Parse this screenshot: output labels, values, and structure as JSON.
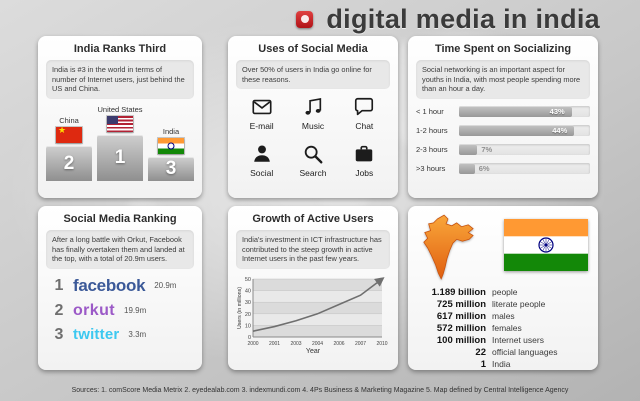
{
  "header": {
    "title": "digital media in india"
  },
  "panels": {
    "india_ranks_third": {
      "title": "India Ranks Third",
      "description": "India is #3 in the world in terms of number of Internet users, just behind the US and China.",
      "podium": [
        {
          "country": "China",
          "rank": "2",
          "flag": "china-flag-icon"
        },
        {
          "country": "United States",
          "rank": "1",
          "flag": "us-flag-icon"
        },
        {
          "country": "India",
          "rank": "3",
          "flag": "india-flag-icon"
        }
      ]
    },
    "uses_of_social_media": {
      "title": "Uses of Social Media",
      "description": "Over 50% of users in India go online for these reasons.",
      "uses": [
        {
          "label": "E-mail",
          "icon": "email-icon"
        },
        {
          "label": "Music",
          "icon": "music-icon"
        },
        {
          "label": "Chat",
          "icon": "chat-icon"
        },
        {
          "label": "Social",
          "icon": "social-person-icon"
        },
        {
          "label": "Search",
          "icon": "search-icon"
        },
        {
          "label": "Jobs",
          "icon": "jobs-briefcase-icon"
        }
      ]
    },
    "time_spent_on_socializing": {
      "title": "Time Spent on Socializing",
      "description": "Social networking is an important aspect for youths in India, with most people spending more than an hour a day."
    },
    "social_media_ranking": {
      "title": "Social Media Ranking",
      "description": "After a long battle with Orkut, Facebook has finally overtaken them and landed at the top, with a total of 20.9m users.",
      "ranking": [
        {
          "rank": "1",
          "name": "facebook",
          "users": "20.9m",
          "color": "#3b5998"
        },
        {
          "rank": "2",
          "name": "orkut",
          "users": "19.9m",
          "color": "#9b59c7"
        },
        {
          "rank": "3",
          "name": "twitter",
          "users": "3.3m",
          "color": "#3cc8f0"
        }
      ]
    },
    "growth_of_active_users": {
      "title": "Growth of Active Users",
      "description": "India's investment in ICT infrastructure has contributed to the steep growth in active Internet users in the past few years."
    },
    "india_stats": {
      "stats": [
        {
          "value": "1.189 billion",
          "label": "people"
        },
        {
          "value": "725 million",
          "label": "literate people"
        },
        {
          "value": "617 million",
          "label": "males"
        },
        {
          "value": "572 million",
          "label": "females"
        },
        {
          "value": "100 million",
          "label": "Internet users"
        },
        {
          "value": "22",
          "label": "official languages"
        },
        {
          "value": "1",
          "label": "India"
        }
      ]
    }
  },
  "chart_data": [
    {
      "type": "bar",
      "title": "Time Spent on Socializing",
      "orientation": "horizontal",
      "categories": [
        "< 1 hour",
        "1-2 hours",
        "2-3 hours",
        ">3 hours"
      ],
      "values": [
        43,
        44,
        7,
        6
      ],
      "unit": "%",
      "xlim": [
        0,
        50
      ]
    },
    {
      "type": "line",
      "title": "Growth of Active Users",
      "x": [
        2000,
        2001,
        2003,
        2004,
        2006,
        2007,
        2010
      ],
      "y": [
        5,
        9,
        14,
        20,
        28,
        36,
        50
      ],
      "xlabel": "Year",
      "ylabel": "Users (in millions)",
      "ylim": [
        0,
        50
      ],
      "y_ticks": [
        0,
        10,
        20,
        30,
        40,
        50
      ],
      "grid": "horizontal-bands",
      "annotation": "arrow-trend"
    }
  ],
  "footer": {
    "sources": "Sources: 1. comScore Media Metrix 2. eyedealab.com 3. indexmundi.com 4. 4Ps Business & Marketing Magazine 5. Map defined by Central Intelligence Agency"
  }
}
